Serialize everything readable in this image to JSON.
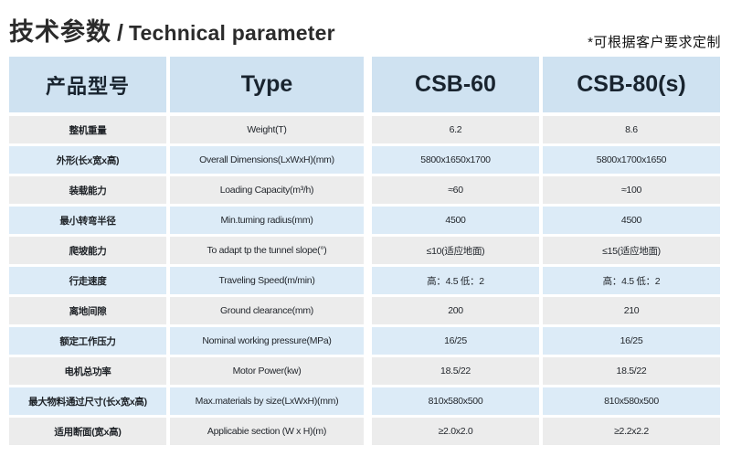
{
  "header": {
    "title_zh": "技术参数",
    "separator": "/",
    "title_en": "Technical parameter",
    "note": "*可根据客户要求定制"
  },
  "table": {
    "columns": [
      "产品型号",
      "Type",
      "CSB-60",
      "CSB-80(s)"
    ],
    "rows": [
      {
        "cn": "整机重量",
        "en": "Weight(T)",
        "csb60": "6.2",
        "csb80": "8.6"
      },
      {
        "cn": "外形(长x宽x高)",
        "en": "Overall Dimensions(LxWxH)(mm)",
        "csb60": "5800x1650x1700",
        "csb80": "5800x1700x1650"
      },
      {
        "cn": "装载能力",
        "en": "Loading Capacity(m³/h)",
        "csb60": "≈60",
        "csb80": "≈100"
      },
      {
        "cn": "最小转弯半径",
        "en": "Min.tuming radius(mm)",
        "csb60": "4500",
        "csb80": "4500"
      },
      {
        "cn": "爬坡能力",
        "en": "To adapt tp the tunnel slope(°)",
        "csb60": "≤10(适应地面)",
        "csb80": "≤15(适应地面)"
      },
      {
        "cn": "行走速度",
        "en": "Traveling Speed(m/min)",
        "csb60": "高：4.5 低：2",
        "csb80": "高：4.5 低：2"
      },
      {
        "cn": "离地间隙",
        "en": "Ground clearance(mm)",
        "csb60": "200",
        "csb80": "210"
      },
      {
        "cn": "额定工作压力",
        "en": "Nominal working pressure(MPa)",
        "csb60": "16/25",
        "csb80": "16/25"
      },
      {
        "cn": "电机总功率",
        "en": "Motor Power(kw)",
        "csb60": "18.5/22",
        "csb80": "18.5/22"
      },
      {
        "cn": "最大物料通过尺寸(长x宽x高)",
        "en": "Max.materials by size(LxWxH)(mm)",
        "csb60": "810x580x500",
        "csb80": "810x580x500"
      },
      {
        "cn": "适用断面(宽x高)",
        "en": "Applicabie section (W x H)(m)",
        "csb60": "≥2.0x2.0",
        "csb80": "≥2.2x2.2"
      }
    ]
  },
  "colors": {
    "header_bg": "#cfe2f1",
    "row_blue": "#dcebf7",
    "row_gray": "#ececec",
    "text_dark": "#20242a"
  }
}
